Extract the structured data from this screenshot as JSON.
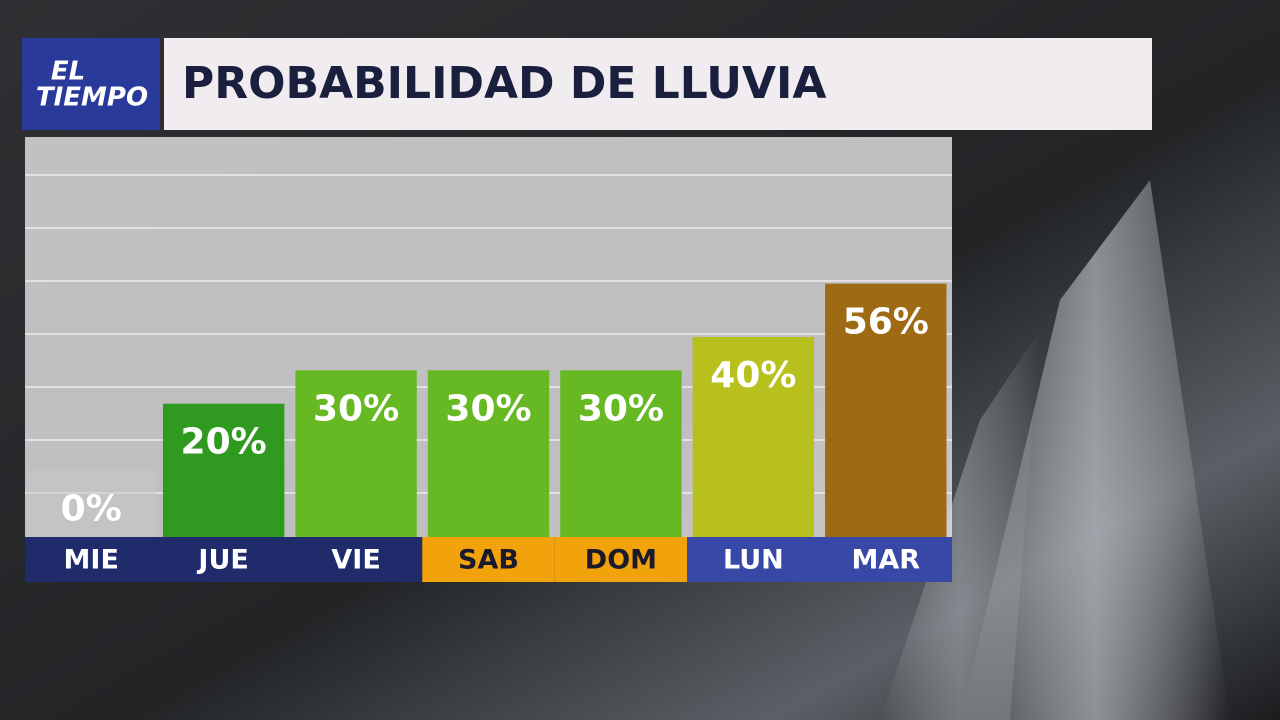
{
  "brand": [
    "EL",
    "TIEMPO"
  ],
  "chart_data": {
    "type": "bar",
    "title": "PROBABILIDAD DE LLUVIA",
    "categories": [
      "MIE",
      "JUE",
      "VIE",
      "SAB",
      "DOM",
      "LUN",
      "MAR"
    ],
    "category_colors": [
      "#1f2b6b",
      "#1f2b6b",
      "#1f2b6b",
      "#f2a20a",
      "#f2a20a",
      "#3848a6",
      "#3848a6"
    ],
    "values": [
      0,
      20,
      30,
      30,
      30,
      40,
      56
    ],
    "value_labels": [
      "0%",
      "20%",
      "30%",
      "30%",
      "30%",
      "40%",
      "56%"
    ],
    "colors": [
      "#c9c9c9",
      "#2f9a1f",
      "#66b923",
      "#66b923",
      "#66b923",
      "#b7c01d",
      "#9e6a14"
    ],
    "ylim": [
      -20,
      100
    ]
  }
}
